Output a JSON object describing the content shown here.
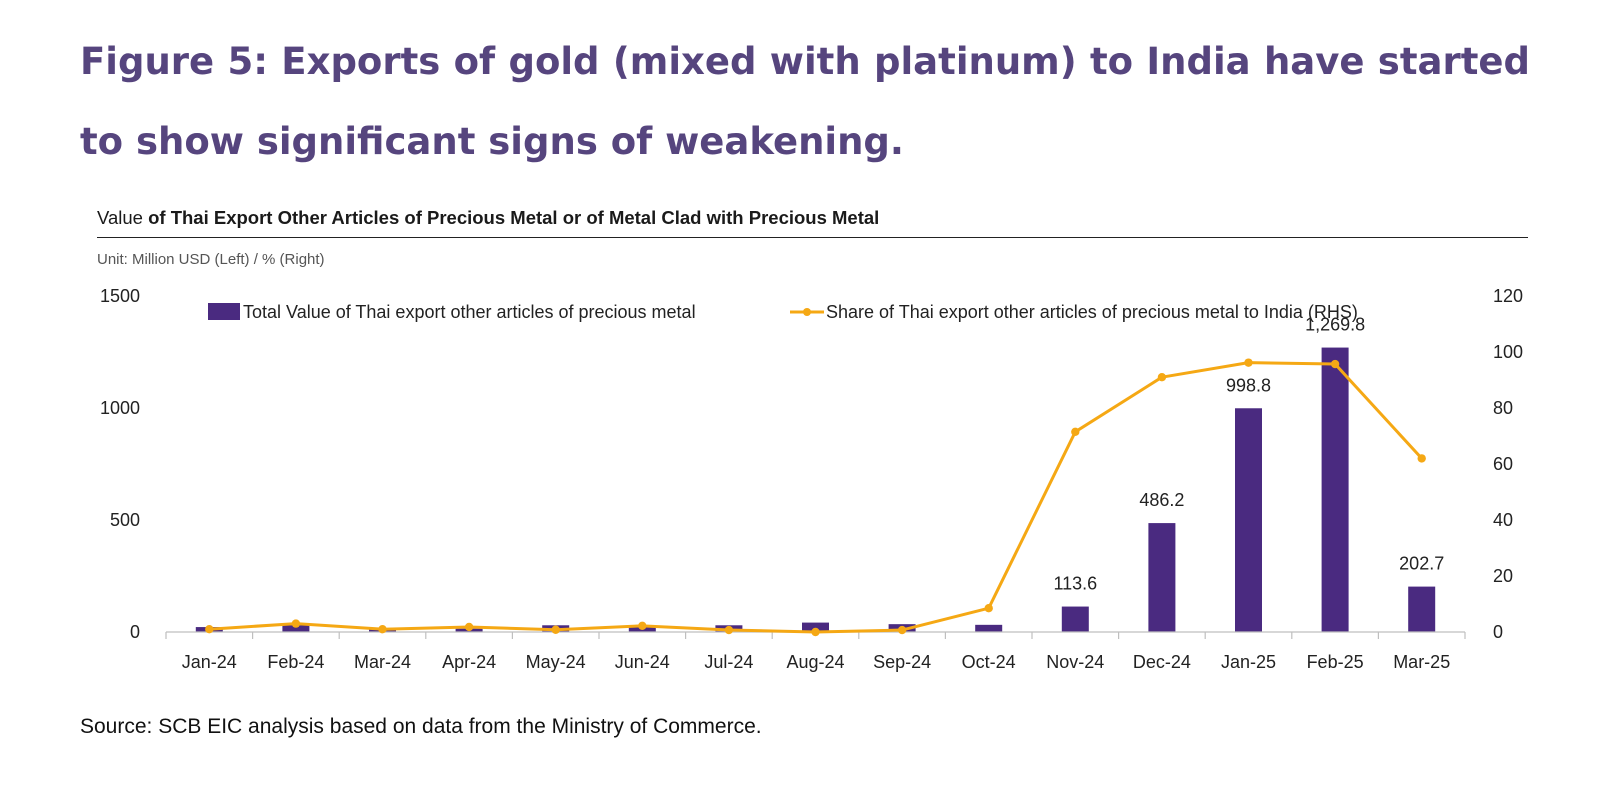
{
  "figure": {
    "title": "Figure 5: Exports of gold (mixed with platinum) to India have started to show significant signs of weakening.",
    "chart_title_part1": "Value",
    "chart_title_part2": " of Thai Export Other Articles of Precious Metal or of Metal Clad with Precious Metal",
    "unit_note": "Unit: Million  USD (Left) / % (Right)",
    "source": "Source: SCB EIC analysis based on data from the Ministry of Commerce."
  },
  "colors": {
    "title": "#56457e",
    "bar": "#4a2a80",
    "line": "#f5a814",
    "axis": "#bfbfbf"
  },
  "chart_data": {
    "type": "bar",
    "title": "Value of Thai Export Other Articles of Precious Metal or of Metal Clad with Precious Metal",
    "categories": [
      "Jan-24",
      "Feb-24",
      "Mar-24",
      "Apr-24",
      "May-24",
      "Jun-24",
      "Jul-24",
      "Aug-24",
      "Sep-24",
      "Oct-24",
      "Nov-24",
      "Dec-24",
      "Jan-25",
      "Feb-25",
      "Mar-25"
    ],
    "series": [
      {
        "name": "Total Value of Thai export other articles of precious metal",
        "type": "bar",
        "axis": "left",
        "values": [
          22,
          30,
          12,
          15,
          30,
          22,
          30,
          42,
          35,
          32,
          113.6,
          486.2,
          998.8,
          1269.8,
          202.7
        ],
        "labels": [
          "",
          "",
          "",
          "",
          "",
          "",
          "",
          "",
          "",
          "",
          "113.6",
          "486.2",
          "998.8",
          "1,269.8",
          "202.7"
        ]
      },
      {
        "name": "Share of Thai export other articles of precious metal to India (RHS)",
        "type": "line",
        "axis": "right",
        "values": [
          1,
          3,
          1,
          1.8,
          0.8,
          2.2,
          0.7,
          0,
          0.7,
          8.5,
          71.5,
          91,
          96.2,
          95.7,
          62
        ]
      }
    ],
    "y_left": {
      "min": 0,
      "max": 1500,
      "ticks": [
        0,
        500,
        1000,
        1500
      ]
    },
    "y_right": {
      "min": 0,
      "max": 120,
      "ticks": [
        0,
        20,
        40,
        60,
        80,
        100,
        120
      ]
    },
    "legend_position": "top",
    "grid": false
  }
}
